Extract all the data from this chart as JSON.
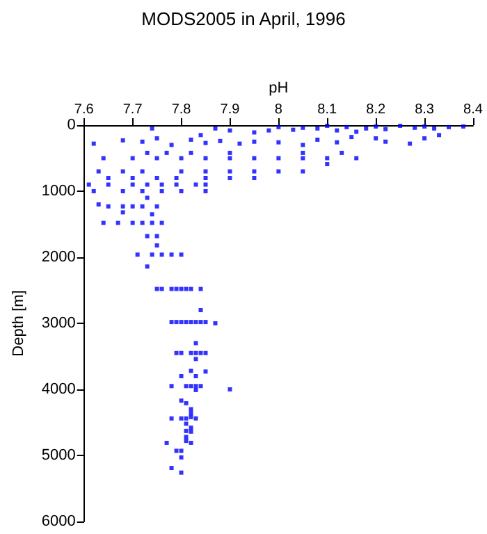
{
  "chart_data": {
    "type": "scatter",
    "title": "MODS2005 in April, 1996",
    "xlabel": "pH",
    "ylabel": "Depth [m]",
    "xlim": [
      7.6,
      8.4
    ],
    "xticks": [
      7.6,
      7.7,
      7.8,
      7.9,
      8,
      8.1,
      8.2,
      8.3,
      8.4
    ],
    "ylim": [
      6000,
      0
    ],
    "yticks": [
      0,
      1000,
      2000,
      3000,
      4000,
      5000,
      6000
    ],
    "grid": false,
    "marker": "square",
    "series": [
      {
        "color": "#0000ff",
        "x": [
          8.38,
          8.35,
          8.32,
          8.3,
          8.28,
          8.25,
          8.22,
          8.2,
          8.18,
          8.16,
          8.14,
          8.12,
          8.1,
          8.08,
          8.05,
          8.03,
          8.0,
          7.98,
          7.95,
          7.9,
          7.87,
          7.84,
          7.74,
          8.3,
          8.33,
          8.27,
          8.22,
          8.2,
          8.15,
          8.12,
          8.08,
          8.05,
          8.0,
          7.95,
          7.92,
          7.88,
          7.85,
          7.82,
          7.78,
          7.72,
          7.68,
          7.62,
          7.75,
          7.64,
          7.7,
          7.75,
          7.8,
          7.85,
          7.9,
          7.95,
          8.0,
          8.05,
          8.1,
          8.16,
          7.73,
          7.77,
          7.82,
          7.9,
          8.05,
          8.13,
          7.63,
          7.68,
          7.72,
          7.8,
          7.85,
          7.9,
          7.95,
          8.0,
          8.05,
          8.1,
          7.65,
          7.7,
          7.75,
          7.79,
          7.85,
          7.9,
          7.95,
          7.61,
          7.65,
          7.7,
          7.73,
          7.76,
          7.79,
          7.83,
          7.85,
          7.62,
          7.68,
          7.72,
          7.76,
          7.8,
          7.85,
          7.73,
          7.63,
          7.65,
          7.68,
          7.7,
          7.72,
          7.75,
          7.68,
          7.74,
          7.64,
          7.67,
          7.7,
          7.72,
          7.74,
          7.76,
          7.73,
          7.75,
          7.75,
          7.71,
          7.74,
          7.76,
          7.78,
          7.8,
          7.73,
          7.75,
          7.76,
          7.78,
          7.79,
          7.8,
          7.81,
          7.82,
          7.84,
          7.84,
          7.78,
          7.79,
          7.8,
          7.81,
          7.82,
          7.83,
          7.84,
          7.85,
          7.87,
          7.83,
          7.79,
          7.8,
          7.82,
          7.83,
          7.84,
          7.85,
          7.83,
          7.82,
          7.85,
          7.8,
          7.83,
          7.78,
          7.81,
          7.82,
          7.83,
          7.84,
          7.9,
          7.83,
          7.8,
          7.81,
          7.82,
          7.82,
          7.82,
          7.78,
          7.8,
          7.81,
          7.83,
          7.81,
          7.82,
          7.81,
          7.82,
          7.81,
          7.81,
          7.77,
          7.82,
          7.79,
          7.8,
          7.8,
          7.78,
          7.8
        ],
        "values": [
          20,
          30,
          50,
          20,
          40,
          10,
          60,
          20,
          50,
          100,
          30,
          80,
          10,
          50,
          40,
          70,
          30,
          80,
          110,
          80,
          50,
          150,
          50,
          200,
          150,
          280,
          250,
          200,
          180,
          260,
          220,
          300,
          260,
          250,
          280,
          240,
          270,
          220,
          300,
          250,
          230,
          280,
          200,
          500,
          500,
          500,
          500,
          500,
          500,
          500,
          500,
          500,
          500,
          500,
          420,
          420,
          420,
          420,
          420,
          420,
          700,
          700,
          700,
          700,
          700,
          700,
          700,
          700,
          700,
          590,
          800,
          800,
          800,
          800,
          800,
          800,
          800,
          900,
          900,
          900,
          900,
          900,
          900,
          900,
          900,
          1000,
          1000,
          1000,
          1000,
          1000,
          1000,
          1100,
          1200,
          1230,
          1230,
          1230,
          1230,
          1230,
          1320,
          1350,
          1480,
          1480,
          1480,
          1480,
          1480,
          1480,
          1680,
          1680,
          1820,
          1960,
          1960,
          1960,
          1960,
          1960,
          2140,
          2480,
          2480,
          2480,
          2480,
          2480,
          2480,
          2480,
          2480,
          2800,
          2980,
          2980,
          2980,
          2980,
          2980,
          2980,
          2980,
          2980,
          3000,
          3300,
          3450,
          3450,
          3450,
          3450,
          3450,
          3450,
          3540,
          3720,
          3730,
          3800,
          3800,
          3950,
          3950,
          3950,
          3950,
          3950,
          4000,
          4010,
          4170,
          4210,
          4300,
          4360,
          4420,
          4440,
          4440,
          4440,
          4440,
          4520,
          4580,
          4630,
          4640,
          4720,
          4780,
          4810,
          4810,
          4930,
          4930,
          5030,
          5190,
          5260
        ]
      }
    ]
  }
}
